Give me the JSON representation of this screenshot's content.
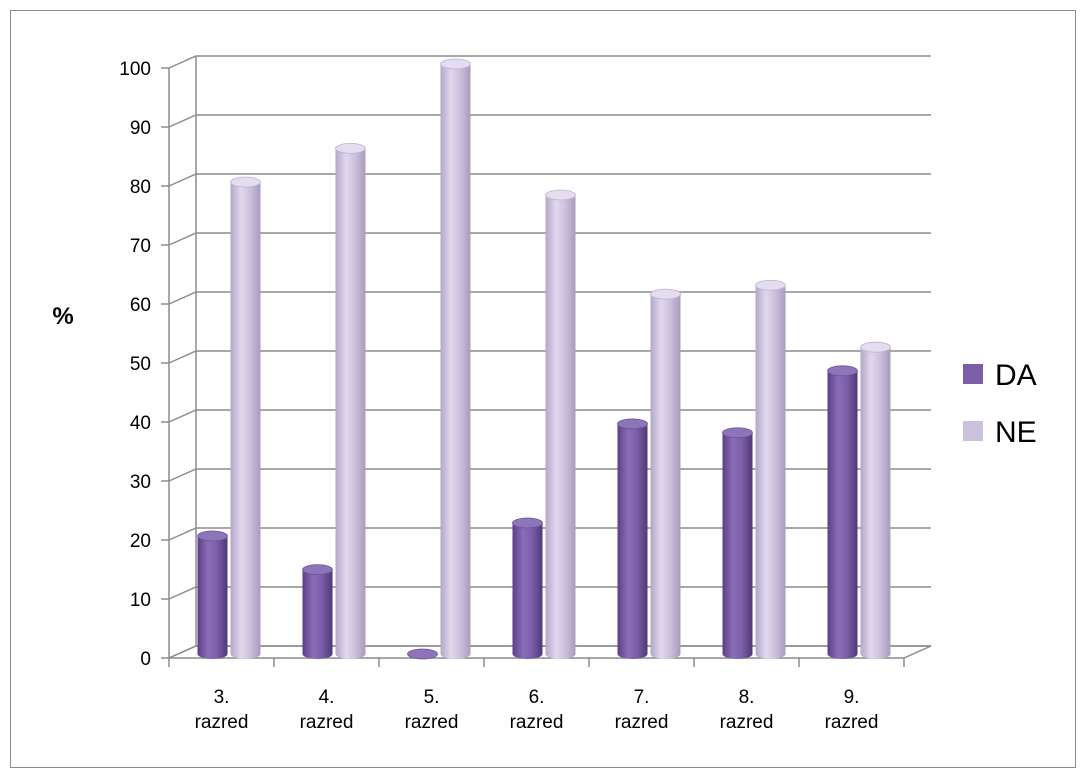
{
  "chart_data": {
    "type": "bar",
    "ylabel": "%",
    "ylim": [
      0,
      100
    ],
    "yticks": [
      "0",
      "10",
      "20",
      "30",
      "40",
      "50",
      "60",
      "70",
      "80",
      "90",
      "100"
    ],
    "categories": [
      [
        "3.",
        "razred"
      ],
      [
        "4.",
        "razred"
      ],
      [
        "5.",
        "razred"
      ],
      [
        "6.",
        "razred"
      ],
      [
        "7.",
        "razred"
      ],
      [
        "8.",
        "razred"
      ],
      [
        "9.",
        "razred"
      ]
    ],
    "series": [
      {
        "name": "DA",
        "color": "#7b5ea7",
        "values": [
          20,
          14.3,
          0,
          22.2,
          39,
          37.5,
          48
        ]
      },
      {
        "name": "NE",
        "color": "#ccc1dc",
        "values": [
          80,
          85.7,
          100,
          77.8,
          61,
          62.5,
          52
        ]
      }
    ],
    "legend_position": "right",
    "grid": true,
    "style": "3d-cylinder"
  }
}
